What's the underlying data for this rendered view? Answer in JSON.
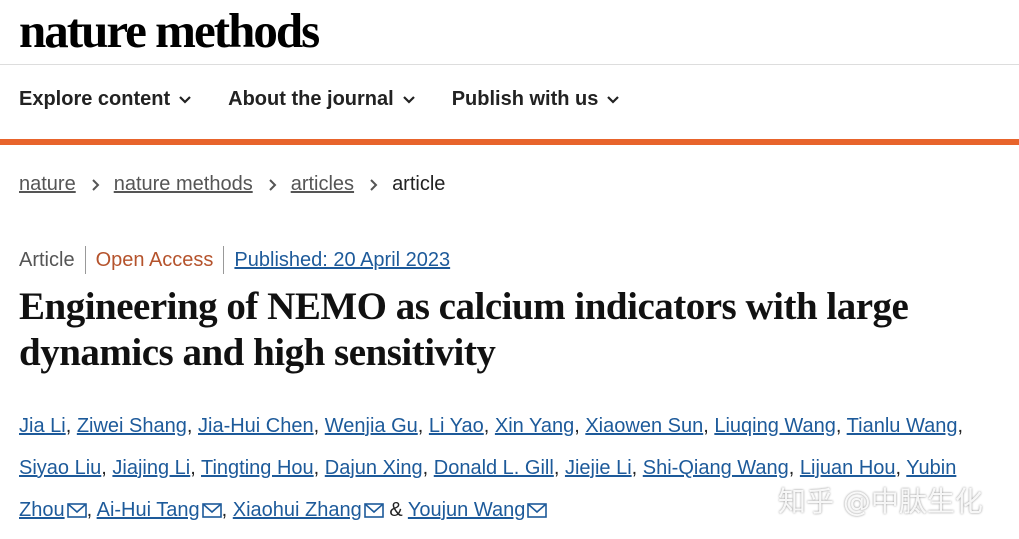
{
  "header": {
    "logo": "nature methods",
    "nav": [
      "Explore content",
      "About the journal",
      "Publish with us"
    ]
  },
  "breadcrumb": [
    "nature",
    "nature methods",
    "articles",
    "article"
  ],
  "article": {
    "type": "Article",
    "access": "Open Access",
    "published": "Published: 20 April 2023",
    "title": "Engineering of NEMO as calcium indicators with large dynamics and high sensitivity",
    "authors": {
      "names": [
        "Jia Li",
        "Ziwei Shang",
        "Jia-Hui Chen",
        "Wenjia Gu",
        "Li Yao",
        "Xin Yang",
        "Xiaowen Sun",
        "Liuqing Wang",
        "Tianlu Wang",
        "Siyao Liu",
        "Jiajing Li",
        "Tingting Hou",
        "Dajun Xing",
        "Donald L. Gill",
        "Jiejie Li",
        "Shi-Qiang Wang",
        "Lijuan Hou",
        "Yubin Zhou",
        "Ai-Hui Tang",
        "Xiaohui Zhang",
        "Youjun Wang"
      ],
      "corresponding": [
        17,
        18,
        19,
        20
      ],
      "separator": ",",
      "conjunction": "&"
    }
  },
  "watermark": "知乎 @中肽生化"
}
